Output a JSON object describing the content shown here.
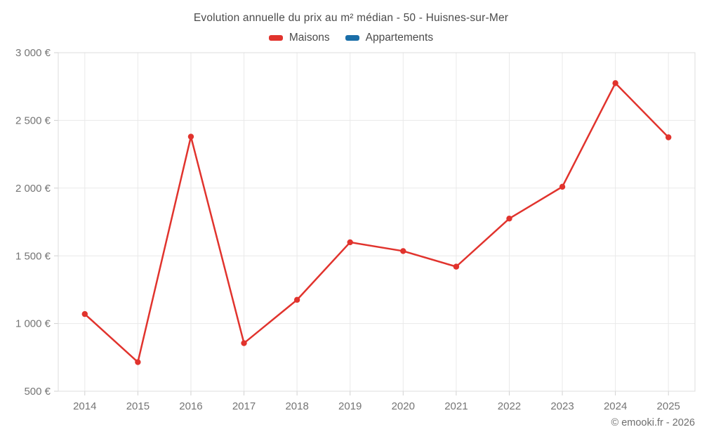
{
  "title": "Evolution annuelle du prix au m² médian - 50 - Huisnes-sur-Mer",
  "legend": [
    {
      "label": "Maisons",
      "color": "#e1332d"
    },
    {
      "label": "Appartements",
      "color": "#1a6ea8"
    }
  ],
  "copyright": "© emooki.fr - 2026",
  "chart_data": {
    "type": "line",
    "title": "Evolution annuelle du prix au m² médian - 50 - Huisnes-sur-Mer",
    "categories": [
      "2014",
      "2015",
      "2016",
      "2017",
      "2018",
      "2019",
      "2020",
      "2021",
      "2022",
      "2023",
      "2024",
      "2025"
    ],
    "series": [
      {
        "name": "Maisons",
        "color": "#e1332d",
        "values": [
          1070,
          715,
          2380,
          855,
          1175,
          1600,
          1535,
          1420,
          1775,
          2010,
          2775,
          2375
        ]
      },
      {
        "name": "Appartements",
        "color": "#1a6ea8",
        "values": []
      }
    ],
    "xlabel": "",
    "ylabel": "",
    "ylim": [
      500,
      3000
    ],
    "yticks": [
      {
        "value": 500,
        "label": "500 €"
      },
      {
        "value": 1000,
        "label": "1 000 €"
      },
      {
        "value": 1500,
        "label": "1 500 €"
      },
      {
        "value": 2000,
        "label": "2 000 €"
      },
      {
        "value": 2500,
        "label": "2 500 €"
      },
      {
        "value": 3000,
        "label": "3 000 €"
      }
    ],
    "grid": true,
    "legend_position": "top",
    "colors": {
      "grid_line": "#e9e9e9",
      "plot_border": "#dcdcdc",
      "tick_mark": "#d0d0d0",
      "axis_text": "#757575"
    }
  }
}
